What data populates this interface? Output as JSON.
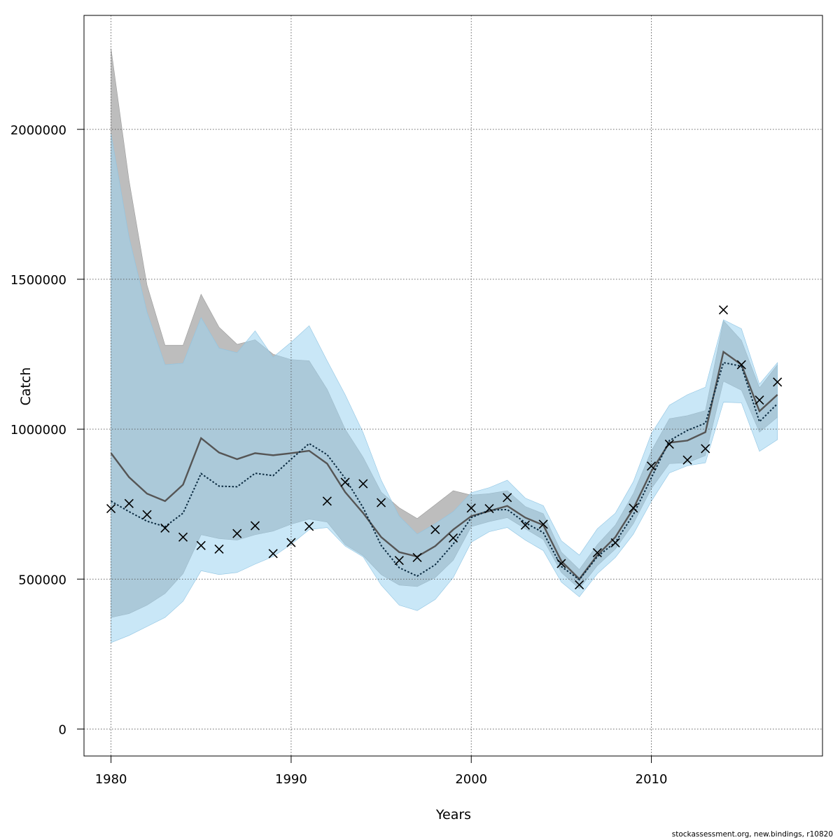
{
  "chart_data": {
    "type": "line",
    "xlabel": "Years",
    "ylabel": "Catch",
    "xlim": [
      1978.5,
      2019.5
    ],
    "ylim": [
      -90000,
      2380000
    ],
    "x_ticks": [
      1980,
      1990,
      2000,
      2010
    ],
    "x_tick_labels": [
      "1980",
      "1990",
      "2000",
      "2010"
    ],
    "y_ticks": [
      0,
      500000,
      1000000,
      1500000,
      2000000
    ],
    "y_tick_labels": [
      "0",
      "500000",
      "1000000",
      "1500000",
      "2000000"
    ],
    "grid": true,
    "colors": {
      "band_gray": "#bdbdbd",
      "band_blue": "#c6e4f5",
      "band_overlap": "#a5c4d4",
      "line_gray": "#555555",
      "line_blue": "#0a2a40",
      "observed_marker": "#000000"
    },
    "years": [
      1980,
      1981,
      1982,
      1983,
      1984,
      1985,
      1986,
      1987,
      1988,
      1989,
      1990,
      1991,
      1992,
      1993,
      1994,
      1995,
      1996,
      1997,
      1998,
      1999,
      2000,
      2001,
      2002,
      2003,
      2004,
      2005,
      2006,
      2007,
      2008,
      2009,
      2010,
      2011,
      2012,
      2013,
      2014,
      2015,
      2016,
      2017
    ],
    "series": [
      {
        "style": "solid-gray",
        "values": [
          920000,
          840000,
          785000,
          760000,
          815000,
          970000,
          922000,
          900000,
          920000,
          913000,
          920000,
          928000,
          885000,
          790000,
          720000,
          640000,
          590000,
          575000,
          610000,
          665000,
          710000,
          727000,
          744000,
          705000,
          680000,
          560000,
          500000,
          580000,
          640000,
          735000,
          860000,
          955000,
          962000,
          990000,
          1258000,
          1215000,
          1060000,
          1115000
        ],
        "lower": [
          372000,
          385000,
          413000,
          452000,
          518000,
          648000,
          635000,
          630000,
          648000,
          660000,
          683000,
          700000,
          690000,
          615000,
          578000,
          515000,
          480000,
          475000,
          505000,
          563000,
          675000,
          692000,
          705000,
          668000,
          632000,
          522000,
          468000,
          545000,
          600000,
          685000,
          802000,
          885000,
          888000,
          912000,
          1160000,
          1130000,
          990000,
          1040000
        ],
        "upper": [
          2270000,
          1830000,
          1480000,
          1280000,
          1280000,
          1450000,
          1340000,
          1283000,
          1298000,
          1250000,
          1232000,
          1228000,
          1133000,
          1000000,
          906000,
          790000,
          738000,
          702000,
          748000,
          795000,
          780000,
          785000,
          795000,
          742000,
          718000,
          590000,
          532000,
          615000,
          680000,
          785000,
          928000,
          1035000,
          1045000,
          1062000,
          1362000,
          1296000,
          1138000,
          1215000
        ]
      },
      {
        "style": "dotted-blue",
        "values": [
          760000,
          725000,
          693000,
          675000,
          720000,
          852000,
          810000,
          808000,
          853000,
          845000,
          900000,
          952000,
          915000,
          836000,
          738000,
          612000,
          538000,
          510000,
          548000,
          617000,
          705000,
          730000,
          732000,
          688000,
          655000,
          542000,
          498000,
          575000,
          623000,
          715000,
          838000,
          962000,
          996000,
          1020000,
          1222000,
          1210000,
          1025000,
          1085000
        ],
        "lower": [
          288000,
          312000,
          342000,
          372000,
          426000,
          528000,
          515000,
          522000,
          550000,
          575000,
          616000,
          665000,
          672000,
          610000,
          574000,
          480000,
          413000,
          395000,
          432000,
          505000,
          623000,
          658000,
          672000,
          630000,
          595000,
          490000,
          441000,
          518000,
          572000,
          650000,
          760000,
          854000,
          878000,
          888000,
          1090000,
          1088000,
          926000,
          965000
        ],
        "upper": [
          1985000,
          1640000,
          1390000,
          1215000,
          1220000,
          1372000,
          1270000,
          1255000,
          1328000,
          1240000,
          1290000,
          1345000,
          1228000,
          1115000,
          988000,
          830000,
          710000,
          650000,
          685000,
          725000,
          788000,
          805000,
          830000,
          770000,
          745000,
          628000,
          580000,
          668000,
          720000,
          825000,
          985000,
          1080000,
          1115000,
          1140000,
          1365000,
          1335000,
          1150000,
          1222000
        ]
      }
    ],
    "observed": [
      735000,
      752000,
      715000,
      670000,
      640000,
      612000,
      600000,
      652000,
      678000,
      585000,
      622000,
      676000,
      760000,
      823000,
      818000,
      755000,
      562000,
      572000,
      665000,
      637000,
      737000,
      735000,
      772000,
      680000,
      683000,
      552000,
      481000,
      588000,
      621000,
      737000,
      877000,
      950000,
      897000,
      935000,
      1398000,
      1215000,
      1097000,
      1157000
    ]
  },
  "footer": "stockassessment.org, new.bindings, r10820"
}
